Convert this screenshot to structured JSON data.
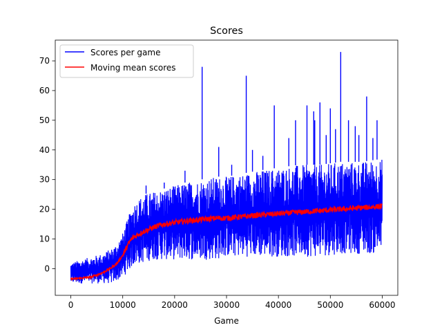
{
  "chart_data": {
    "type": "line",
    "title": "Scores",
    "xlabel": "Game",
    "ylabel": "",
    "xlim": [
      -3000,
      63000
    ],
    "ylim": [
      -9,
      77
    ],
    "xticks": [
      0,
      10000,
      20000,
      30000,
      40000,
      50000,
      60000
    ],
    "xtick_labels": [
      "0",
      "10000",
      "20000",
      "30000",
      "40000",
      "50000",
      "60000"
    ],
    "yticks": [
      0,
      10,
      20,
      30,
      40,
      50,
      60,
      70
    ],
    "ytick_labels": [
      "0",
      "10",
      "20",
      "30",
      "40",
      "50",
      "60",
      "70"
    ],
    "grid": false,
    "legend_position": "top-left",
    "series": [
      {
        "name": "Scores per game",
        "color": "#0000ff",
        "x": [
          0,
          2000,
          4000,
          6000,
          8000,
          9000,
          10000,
          11000,
          12000,
          14000,
          16000,
          18000,
          20000,
          22000,
          25000,
          28000,
          30000,
          33000,
          36000,
          40000,
          44000,
          48000,
          52000,
          56000,
          60000
        ],
        "upper": [
          2,
          3,
          4,
          5,
          7,
          9,
          12,
          17,
          22,
          25,
          26,
          27,
          28,
          29,
          30,
          31,
          31,
          32,
          33,
          34,
          35,
          35,
          36,
          36,
          37
        ],
        "lower": [
          -5,
          -5,
          -5,
          -5,
          -5,
          -4,
          -3,
          -1,
          1,
          2,
          3,
          3,
          3,
          3,
          3,
          3,
          4,
          4,
          4,
          4,
          4,
          4,
          5,
          5,
          5
        ],
        "spikes": [
          [
            25300,
            68
          ],
          [
            33800,
            65
          ],
          [
            52000,
            73
          ],
          [
            57000,
            58
          ],
          [
            45500,
            55
          ],
          [
            39200,
            55
          ],
          [
            48000,
            56
          ],
          [
            50000,
            54
          ],
          [
            28500,
            41
          ],
          [
            43300,
            50
          ],
          [
            55500,
            45
          ],
          [
            59000,
            50
          ],
          [
            35000,
            40
          ],
          [
            42000,
            44
          ],
          [
            46800,
            53
          ],
          [
            53500,
            50
          ],
          [
            54800,
            48
          ],
          [
            58200,
            44
          ],
          [
            37000,
            38
          ],
          [
            31000,
            35
          ],
          [
            22000,
            33
          ],
          [
            18000,
            29
          ],
          [
            14500,
            28
          ],
          [
            47000,
            50
          ],
          [
            51000,
            47
          ],
          [
            49200,
            45
          ]
        ]
      },
      {
        "name": "Moving mean scores",
        "color": "#ff0000",
        "x": [
          0,
          2000,
          4000,
          6000,
          7000,
          8000,
          9000,
          10000,
          11000,
          11500,
          12000,
          13000,
          14000,
          16000,
          18000,
          20000,
          22000,
          25000,
          28000,
          30000,
          33000,
          36000,
          40000,
          44000,
          48000,
          52000,
          56000,
          60000
        ],
        "values": [
          -3.5,
          -3.2,
          -2.8,
          -1.5,
          -0.5,
          0.5,
          2,
          4.5,
          8,
          9.5,
          10.5,
          11.5,
          12.5,
          14,
          15,
          15.5,
          16,
          16.5,
          17,
          17,
          17.5,
          18,
          18.5,
          19,
          19.5,
          20,
          20.5,
          21
        ]
      }
    ]
  }
}
